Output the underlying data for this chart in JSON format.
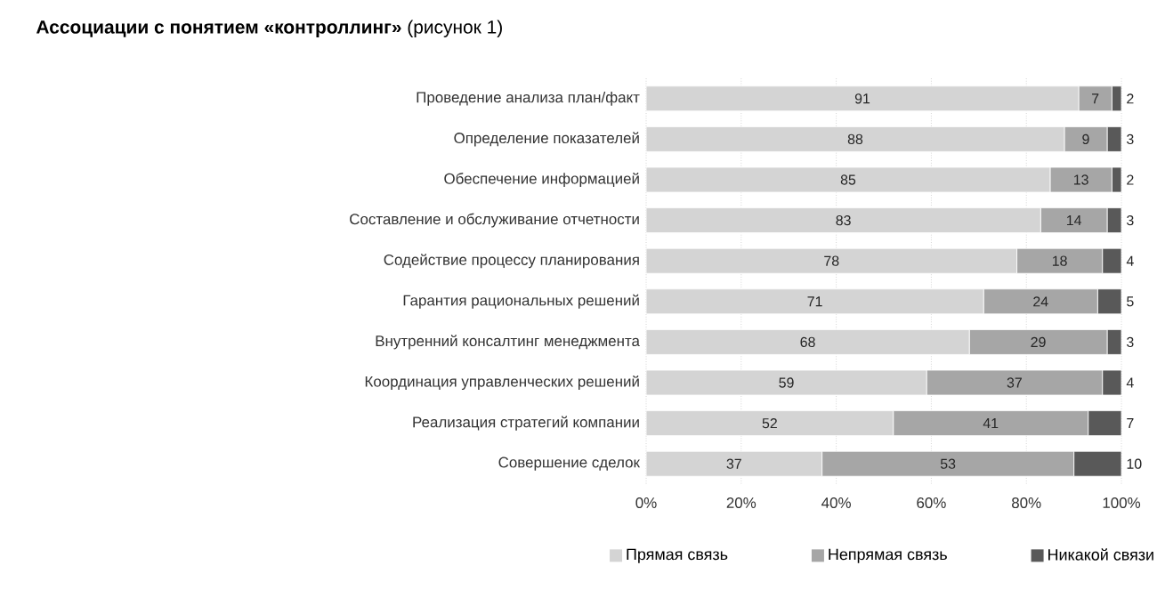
{
  "chart_data": {
    "type": "bar",
    "orientation": "horizontal",
    "stacked": true,
    "title": "**Ассоциации с понятием «контроллинг»** (рисунок 1)",
    "categories": [
      "Проведение анализа план/факт",
      "Определение показателей",
      "Обеспечение информацией",
      "Составление и обслуживание отчетности",
      "Содействие процессу планирования",
      "Гарантия рациональных решений",
      "Внутренний консалтинг менеджмента",
      "Координация управленческих решений",
      "Реализация стратегий компании",
      "Совершение сделок"
    ],
    "series": [
      {
        "name": "Прямая связь",
        "color": "#d4d4d4",
        "values": [
          91,
          88,
          85,
          83,
          78,
          71,
          68,
          59,
          52,
          37
        ]
      },
      {
        "name": "Непрямая связь",
        "color": "#a6a6a6",
        "values": [
          7,
          9,
          13,
          14,
          18,
          24,
          29,
          37,
          41,
          53
        ]
      },
      {
        "name": "Никакой связи",
        "color": "#595959",
        "values": [
          2,
          3,
          2,
          3,
          4,
          5,
          3,
          4,
          7,
          10
        ]
      }
    ],
    "xlim": [
      0,
      100
    ],
    "xticks": [
      {
        "value": 0,
        "label": "0%"
      },
      {
        "value": 20,
        "label": "20%"
      },
      {
        "value": 40,
        "label": "40%"
      },
      {
        "value": 60,
        "label": "60%"
      },
      {
        "value": 80,
        "label": "80%"
      },
      {
        "value": 100,
        "label": "100%"
      }
    ],
    "grid": "x",
    "legend": "bottom",
    "data_labels": true
  }
}
